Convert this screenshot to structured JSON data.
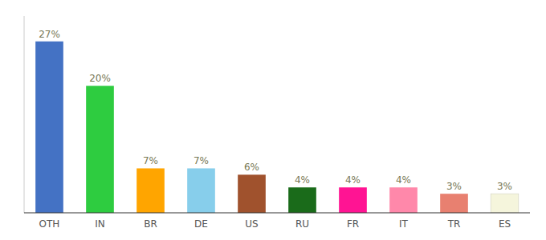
{
  "chart_data": {
    "type": "bar",
    "categories": [
      "OTH",
      "IN",
      "BR",
      "DE",
      "US",
      "RU",
      "FR",
      "IT",
      "TR",
      "ES"
    ],
    "values": [
      27,
      20,
      7,
      7,
      6,
      4,
      4,
      4,
      3,
      3
    ],
    "value_labels": [
      "27%",
      "20%",
      "7%",
      "7%",
      "6%",
      "4%",
      "4%",
      "4%",
      "3%",
      "3%"
    ],
    "colors": [
      "#4472C4",
      "#2ECC40",
      "#FFA500",
      "#87CEEB",
      "#A0522D",
      "#1A6B1A",
      "#FF1493",
      "#FF88AA",
      "#E88070",
      "#F5F5DC"
    ],
    "ylim": [
      0,
      31
    ],
    "data_labels": true,
    "tick_labels": "x",
    "grid": false
  }
}
